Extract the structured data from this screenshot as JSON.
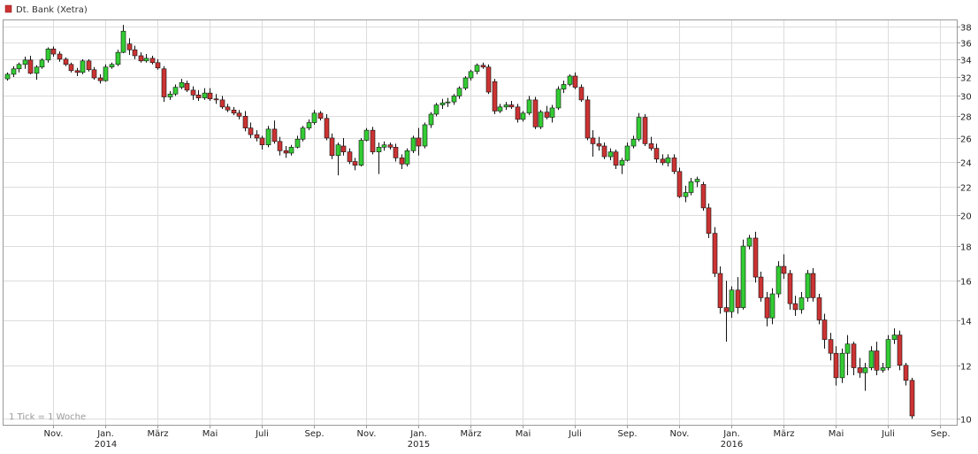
{
  "chart_data": {
    "type": "candlestick",
    "title": "Dt. Bank (Xetra)",
    "note": "1 Tick = 1 Woche",
    "y_scale": "log",
    "ylim": [
      9.8,
      38.8
    ],
    "y_ticks": [
      10,
      12,
      14,
      16,
      18,
      20,
      22,
      24,
      26,
      28,
      30,
      32,
      34,
      36,
      38
    ],
    "x_ticks": [
      {
        "i": 8,
        "label": "Nov.",
        "year": ""
      },
      {
        "i": 17,
        "label": "Jan.",
        "year": "2014"
      },
      {
        "i": 26,
        "label": "März",
        "year": ""
      },
      {
        "i": 35,
        "label": "Mai",
        "year": ""
      },
      {
        "i": 44,
        "label": "Juli",
        "year": ""
      },
      {
        "i": 53,
        "label": "Sep.",
        "year": ""
      },
      {
        "i": 62,
        "label": "Nov.",
        "year": ""
      },
      {
        "i": 71,
        "label": "Jan.",
        "year": "2015"
      },
      {
        "i": 80,
        "label": "März",
        "year": ""
      },
      {
        "i": 89,
        "label": "Mai",
        "year": ""
      },
      {
        "i": 98,
        "label": "Juli",
        "year": ""
      },
      {
        "i": 107,
        "label": "Sep.",
        "year": ""
      },
      {
        "i": 116,
        "label": "Nov.",
        "year": ""
      },
      {
        "i": 125,
        "label": "Jan.",
        "year": "2016"
      },
      {
        "i": 134,
        "label": "März",
        "year": ""
      },
      {
        "i": 143,
        "label": "Mai",
        "year": ""
      },
      {
        "i": 152,
        "label": "Juli",
        "year": ""
      },
      {
        "i": 161,
        "label": "Sep.",
        "year": ""
      }
    ],
    "colors": {
      "up": "#33cc33",
      "down": "#cc3333",
      "grid": "#dcdcdc",
      "frame": "#999999"
    },
    "candles": [
      [
        31.8,
        32.5,
        31.6,
        32.3
      ],
      [
        32.3,
        33.2,
        32.0,
        32.9
      ],
      [
        32.9,
        33.6,
        32.5,
        33.4
      ],
      [
        33.4,
        34.3,
        32.9,
        33.9
      ],
      [
        33.9,
        34.4,
        32.3,
        32.4
      ],
      [
        32.4,
        33.3,
        31.7,
        33.1
      ],
      [
        33.1,
        34.1,
        32.9,
        33.9
      ],
      [
        33.9,
        35.4,
        33.6,
        35.2
      ],
      [
        35.2,
        35.5,
        34.3,
        34.6
      ],
      [
        34.6,
        34.9,
        33.7,
        34.0
      ],
      [
        34.0,
        34.2,
        33.2,
        33.4
      ],
      [
        33.4,
        33.6,
        32.5,
        32.7
      ],
      [
        32.7,
        33.0,
        32.1,
        32.5
      ],
      [
        32.5,
        34.0,
        32.3,
        33.8
      ],
      [
        33.8,
        34.0,
        32.6,
        32.8
      ],
      [
        32.8,
        33.1,
        31.7,
        31.9
      ],
      [
        31.9,
        32.3,
        31.3,
        31.6
      ],
      [
        31.6,
        33.4,
        31.5,
        33.1
      ],
      [
        33.1,
        33.6,
        32.9,
        33.4
      ],
      [
        33.4,
        35.1,
        33.2,
        34.8
      ],
      [
        34.8,
        38.2,
        34.7,
        37.4
      ],
      [
        35.8,
        36.5,
        34.5,
        35.1
      ],
      [
        35.1,
        35.6,
        34.0,
        34.4
      ],
      [
        34.4,
        34.8,
        33.6,
        33.8
      ],
      [
        33.8,
        34.6,
        33.6,
        34.1
      ],
      [
        34.1,
        34.4,
        33.4,
        33.6
      ],
      [
        33.6,
        34.0,
        32.8,
        33.0
      ],
      [
        32.9,
        33.2,
        29.4,
        29.9
      ],
      [
        29.9,
        30.5,
        29.6,
        30.2
      ],
      [
        30.2,
        31.2,
        30.0,
        30.9
      ],
      [
        30.9,
        31.8,
        30.7,
        31.4
      ],
      [
        31.3,
        31.6,
        30.4,
        30.6
      ],
      [
        30.6,
        31.0,
        29.6,
        30.1
      ],
      [
        30.1,
        30.6,
        29.5,
        29.8
      ],
      [
        29.8,
        30.8,
        29.6,
        30.3
      ],
      [
        30.3,
        30.8,
        29.5,
        29.7
      ],
      [
        29.7,
        30.2,
        29.2,
        29.6
      ],
      [
        29.6,
        30.0,
        28.7,
        28.9
      ],
      [
        28.9,
        29.2,
        28.4,
        28.6
      ],
      [
        28.6,
        28.9,
        28.1,
        28.3
      ],
      [
        28.3,
        28.6,
        27.7,
        28.0
      ],
      [
        28.0,
        28.5,
        26.6,
        26.9
      ],
      [
        26.9,
        27.4,
        26.0,
        26.3
      ],
      [
        26.3,
        26.7,
        25.7,
        26.0
      ],
      [
        26.0,
        26.2,
        25.0,
        25.4
      ],
      [
        25.4,
        27.1,
        25.2,
        26.8
      ],
      [
        26.8,
        27.6,
        25.5,
        25.7
      ],
      [
        25.7,
        26.1,
        24.5,
        24.9
      ],
      [
        24.9,
        25.3,
        24.3,
        24.7
      ],
      [
        24.7,
        25.4,
        24.5,
        25.2
      ],
      [
        25.2,
        26.2,
        25.1,
        25.9
      ],
      [
        25.9,
        27.1,
        25.7,
        26.9
      ],
      [
        26.9,
        27.7,
        26.7,
        27.4
      ],
      [
        27.4,
        28.6,
        27.2,
        28.3
      ],
      [
        28.3,
        28.5,
        27.6,
        27.8
      ],
      [
        27.8,
        28.2,
        25.8,
        26.0
      ],
      [
        26.0,
        26.4,
        24.2,
        24.5
      ],
      [
        24.5,
        25.6,
        22.9,
        25.4
      ],
      [
        25.3,
        26.0,
        24.5,
        24.8
      ],
      [
        24.8,
        25.1,
        23.8,
        24.0
      ],
      [
        24.0,
        24.3,
        23.3,
        23.7
      ],
      [
        23.7,
        26.0,
        23.6,
        25.8
      ],
      [
        25.8,
        26.9,
        25.7,
        26.7
      ],
      [
        26.7,
        27.0,
        24.6,
        24.8
      ],
      [
        24.8,
        25.6,
        23.0,
        25.2
      ],
      [
        25.2,
        25.7,
        24.9,
        25.4
      ],
      [
        25.4,
        25.6,
        25.0,
        25.2
      ],
      [
        25.2,
        25.5,
        24.0,
        24.3
      ],
      [
        24.3,
        24.6,
        23.4,
        23.8
      ],
      [
        23.8,
        25.1,
        23.6,
        24.9
      ],
      [
        24.9,
        26.2,
        24.7,
        26.0
      ],
      [
        26.0,
        26.9,
        24.5,
        25.3
      ],
      [
        25.3,
        27.4,
        25.1,
        27.2
      ],
      [
        27.2,
        28.4,
        26.9,
        28.2
      ],
      [
        28.2,
        29.3,
        28.0,
        29.1
      ],
      [
        29.1,
        29.7,
        28.7,
        29.3
      ],
      [
        29.3,
        29.8,
        28.9,
        29.4
      ],
      [
        29.4,
        30.2,
        29.1,
        30.0
      ],
      [
        30.0,
        31.0,
        29.7,
        30.8
      ],
      [
        30.8,
        32.1,
        30.6,
        31.9
      ],
      [
        31.9,
        32.8,
        31.6,
        32.6
      ],
      [
        32.6,
        33.5,
        32.3,
        33.3
      ],
      [
        33.3,
        33.6,
        32.9,
        33.1
      ],
      [
        33.1,
        33.4,
        30.2,
        30.4
      ],
      [
        31.5,
        31.8,
        28.2,
        28.5
      ],
      [
        28.5,
        29.2,
        28.3,
        28.9
      ],
      [
        28.9,
        29.4,
        28.6,
        29.1
      ],
      [
        29.1,
        29.5,
        28.7,
        28.9
      ],
      [
        28.9,
        29.2,
        27.4,
        27.7
      ],
      [
        27.7,
        28.5,
        27.5,
        28.3
      ],
      [
        28.3,
        30.0,
        28.1,
        29.6
      ],
      [
        29.6,
        29.9,
        26.8,
        27.0
      ],
      [
        27.0,
        28.6,
        26.8,
        28.4
      ],
      [
        28.4,
        29.0,
        27.7,
        27.9
      ],
      [
        27.9,
        29.1,
        27.4,
        28.8
      ],
      [
        28.8,
        31.0,
        28.6,
        30.7
      ],
      [
        30.7,
        31.6,
        30.3,
        31.2
      ],
      [
        31.2,
        32.3,
        31.0,
        32.1
      ],
      [
        32.1,
        32.5,
        30.7,
        30.9
      ],
      [
        30.9,
        31.2,
        29.4,
        29.6
      ],
      [
        29.6,
        30.0,
        25.8,
        26.0
      ],
      [
        26.0,
        26.7,
        24.4,
        25.5
      ],
      [
        25.5,
        26.1,
        24.9,
        25.3
      ],
      [
        25.3,
        25.6,
        24.2,
        24.4
      ],
      [
        24.4,
        25.1,
        24.1,
        24.8
      ],
      [
        24.8,
        25.0,
        23.4,
        23.7
      ],
      [
        23.7,
        24.3,
        23.0,
        24.1
      ],
      [
        24.1,
        25.6,
        24.0,
        25.3
      ],
      [
        25.3,
        26.2,
        25.1,
        25.9
      ],
      [
        25.9,
        28.3,
        25.7,
        27.9
      ],
      [
        27.9,
        28.2,
        25.3,
        25.5
      ],
      [
        25.5,
        26.1,
        24.9,
        25.1
      ],
      [
        25.1,
        25.5,
        23.9,
        24.2
      ],
      [
        24.2,
        24.6,
        23.7,
        23.9
      ],
      [
        23.9,
        24.6,
        23.6,
        24.3
      ],
      [
        24.3,
        24.6,
        23.0,
        23.2
      ],
      [
        23.2,
        23.5,
        21.2,
        21.3
      ],
      [
        21.3,
        22.1,
        20.9,
        21.6
      ],
      [
        21.6,
        22.7,
        21.4,
        22.4
      ],
      [
        22.4,
        22.8,
        22.0,
        22.6
      ],
      [
        22.2,
        22.4,
        20.3,
        20.5
      ],
      [
        20.5,
        20.8,
        18.5,
        18.8
      ],
      [
        18.8,
        19.2,
        16.2,
        16.4
      ],
      [
        16.4,
        16.8,
        14.3,
        14.6
      ],
      [
        14.6,
        16.0,
        13.0,
        14.4
      ],
      [
        14.4,
        15.7,
        14.1,
        15.5
      ],
      [
        15.5,
        16.2,
        14.3,
        14.6
      ],
      [
        14.6,
        18.4,
        14.5,
        18.0
      ],
      [
        18.0,
        18.7,
        17.8,
        18.5
      ],
      [
        18.5,
        18.9,
        15.9,
        16.2
      ],
      [
        16.2,
        16.5,
        14.9,
        15.1
      ],
      [
        15.1,
        15.4,
        13.7,
        14.1
      ],
      [
        14.1,
        15.6,
        13.8,
        15.3
      ],
      [
        15.3,
        17.1,
        15.1,
        16.8
      ],
      [
        16.8,
        17.5,
        16.1,
        16.4
      ],
      [
        16.4,
        16.6,
        14.5,
        14.8
      ],
      [
        14.8,
        15.2,
        14.2,
        14.5
      ],
      [
        14.5,
        15.4,
        14.3,
        15.1
      ],
      [
        15.1,
        16.6,
        14.9,
        16.4
      ],
      [
        16.4,
        16.7,
        14.9,
        15.1
      ],
      [
        15.1,
        15.3,
        13.8,
        14.0
      ],
      [
        14.0,
        14.3,
        12.7,
        13.1
      ],
      [
        13.1,
        13.4,
        12.2,
        12.5
      ],
      [
        12.5,
        12.8,
        11.2,
        11.5
      ],
      [
        11.5,
        12.7,
        11.3,
        12.5
      ],
      [
        12.5,
        13.3,
        11.6,
        12.9
      ],
      [
        12.9,
        13.0,
        11.6,
        11.9
      ],
      [
        11.9,
        12.3,
        11.5,
        11.7
      ],
      [
        11.7,
        12.1,
        11.0,
        11.9
      ],
      [
        11.9,
        12.8,
        11.8,
        12.6
      ],
      [
        12.6,
        13.0,
        11.6,
        11.8
      ],
      [
        11.8,
        12.1,
        11.7,
        11.9
      ],
      [
        11.9,
        13.3,
        11.8,
        13.1
      ],
      [
        13.1,
        13.6,
        12.9,
        13.3
      ],
      [
        13.3,
        13.5,
        11.8,
        12.0
      ],
      [
        12.0,
        12.1,
        11.2,
        11.4
      ],
      [
        11.4,
        11.5,
        10.0,
        10.1
      ]
    ]
  }
}
